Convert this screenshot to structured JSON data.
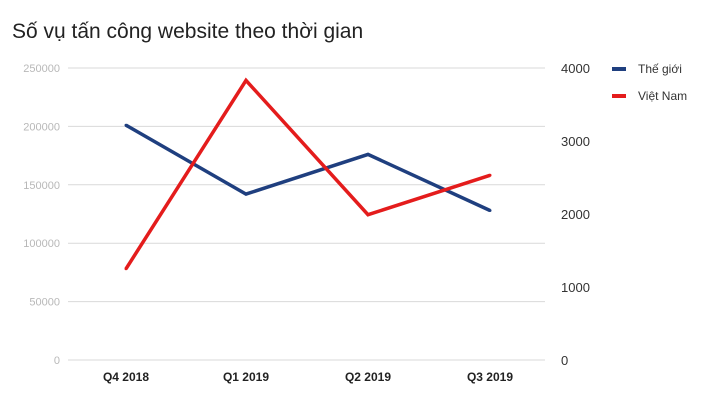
{
  "chart_data": {
    "type": "line",
    "title": "Số vụ tấn công website theo thời gian",
    "categories": [
      "Q4 2018",
      "Q1 2019",
      "Q2 2019",
      "Q3 2019"
    ],
    "axes": {
      "left": {
        "ylim": [
          0,
          250000
        ],
        "ticks": [
          "0",
          "50000",
          "100000",
          "150000",
          "200000",
          "250000"
        ]
      },
      "right": {
        "ylim": [
          0,
          4000
        ],
        "ticks": [
          "0",
          "1000",
          "2000",
          "3000",
          "4000"
        ]
      }
    },
    "series": [
      {
        "name": "Thế giới",
        "axis": "left",
        "color": "#1f3f7f",
        "values": [
          201000,
          142000,
          176000,
          128000
        ]
      },
      {
        "name": "Việt Nam",
        "axis": "right",
        "color": "#e41c1c",
        "values": [
          1250,
          3830,
          1990,
          2530
        ]
      }
    ],
    "grid": true,
    "legend_position": "top-right"
  }
}
